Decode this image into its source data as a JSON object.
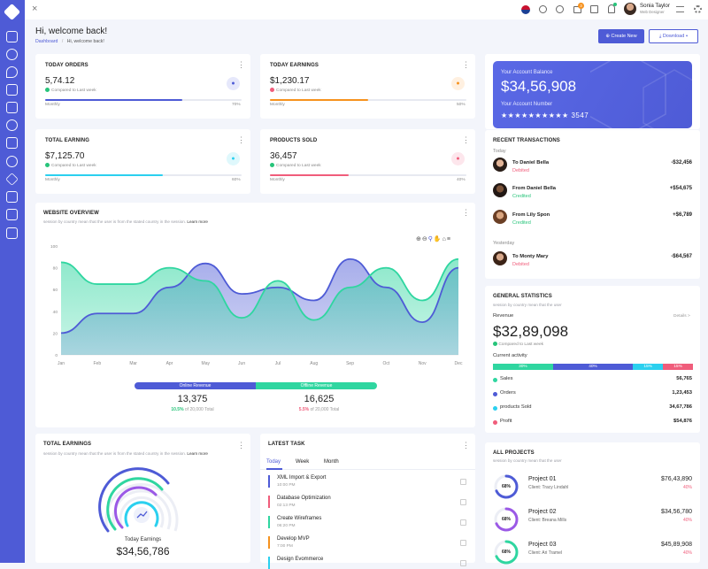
{
  "header": {
    "title": "Hi, welcome back!",
    "breadcrumb_root": "Dashboard",
    "breadcrumb_sep": "/",
    "breadcrumb_current": "Hi, welcome back!",
    "create_label": "Create New",
    "download_label": "Download",
    "user_name": "Sonia Taylor",
    "user_role": "Web Designer",
    "cart_badge": "3"
  },
  "stats": [
    {
      "title": "TODAY ORDERS",
      "value": "5,74.12",
      "compare": "Compared to Last week",
      "period": "Monthly",
      "percent": "70%",
      "progress": 0.7,
      "color": "#4e5bd6",
      "trend": "up"
    },
    {
      "title": "TODAY EARNINGS",
      "value": "$1,230.17",
      "compare": "Compared to Last week",
      "period": "Monthly",
      "percent": "50%",
      "progress": 0.5,
      "color": "#f6921e",
      "trend": "down"
    },
    {
      "title": "TOTAL EARNING",
      "value": "$7,125.70",
      "compare": "Compared to Last week",
      "period": "Monthly",
      "percent": "60%",
      "progress": 0.6,
      "color": "#2bd0ef",
      "trend": "up"
    },
    {
      "title": "PRODUCTS SOLD",
      "value": "36,457",
      "compare": "Compared to Last week",
      "period": "Monthly",
      "percent": "40%",
      "progress": 0.4,
      "color": "#f05d7b",
      "trend": "up"
    }
  ],
  "account": {
    "balance_label": "Your Account Balance",
    "balance": "$34,56,908",
    "number_label": "Your Account Number",
    "number_mask": "★★★★★★★★★★",
    "number_last": "3547"
  },
  "transactions": {
    "title": "RECENT TRANSACTIONS",
    "today": "Today",
    "yesterday": "Yesterday",
    "items": [
      {
        "name": "To Daniel Bella",
        "status": "Debited",
        "amount": "-$32,456",
        "color": "#f05d7b"
      },
      {
        "name": "From Daniel Bella",
        "status": "Credited",
        "amount": "+$54,675",
        "color": "#27c47a"
      },
      {
        "name": "From Lily Spon",
        "status": "Credited",
        "amount": "+$6,789",
        "color": "#27c47a"
      },
      {
        "name": "To Monty Mary",
        "status": "Debited",
        "amount": "-$64,567",
        "color": "#f05d7b"
      }
    ]
  },
  "overview": {
    "title": "WEBSITE OVERVIEW",
    "subtitle": "session by country mean that the user is from the stated country in the session.",
    "learn": "Learn more",
    "online_label": "Online Revenue",
    "offline_label": "Offline Revenue",
    "online_value": "13,375",
    "online_pct": "10.5%",
    "online_of": "of 20,000 Total",
    "offline_value": "16,625",
    "offline_pct": "5.5%",
    "offline_of": "of 20,000 Total"
  },
  "chart_data": {
    "type": "area",
    "categories": [
      "Jan",
      "Feb",
      "Mar",
      "Apr",
      "May",
      "Jun",
      "Jul",
      "Aug",
      "Sep",
      "Oct",
      "Nov",
      "Dec"
    ],
    "ylim": [
      0,
      100
    ],
    "yticks": [
      "0",
      "20",
      "40",
      "60",
      "80",
      "100"
    ],
    "series": [
      {
        "values": [
          20,
          38,
          38,
          62,
          84,
          56,
          62,
          50,
          88,
          62,
          30,
          80
        ],
        "color": "#4e5bd6"
      },
      {
        "values": [
          85,
          65,
          65,
          80,
          68,
          34,
          68,
          32,
          62,
          80,
          50,
          88
        ],
        "color": "#2fd6a0"
      }
    ]
  },
  "general": {
    "title": "GENERAL STATISTICS",
    "subtitle": "session by country mean that the user",
    "revenue_label": "Revenue",
    "details": "Details >",
    "revenue": "$32,89,098",
    "compare": "Compared to Last week",
    "activity": "Current activity",
    "segments": [
      {
        "label": "30%",
        "w": 0.3,
        "color": "#2fd6a0"
      },
      {
        "label": "40%",
        "w": 0.4,
        "color": "#4e5bd6"
      },
      {
        "label": "15%",
        "w": 0.15,
        "color": "#2bd0ef"
      },
      {
        "label": "15%",
        "w": 0.15,
        "color": "#f05d7b"
      }
    ],
    "rows": [
      {
        "label": "Sales",
        "value": "56,765",
        "color": "#2fd6a0"
      },
      {
        "label": "Orders",
        "value": "1,23,453",
        "color": "#4e5bd6"
      },
      {
        "label": "products Sold",
        "value": "34,67,786",
        "color": "#2bd0ef"
      },
      {
        "label": "Profit",
        "value": "$54,876",
        "color": "#f05d7b"
      }
    ]
  },
  "total_earnings": {
    "title": "TOTAL EARNINGS",
    "subtitle": "session by country mean that the user is from the stated country in the session.",
    "learn": "Learn more",
    "label": "Today Earnings",
    "value": "$34,56,786"
  },
  "tasks": {
    "title": "LATEST TASK",
    "tabs": [
      "Today",
      "Week",
      "Month"
    ],
    "items": [
      {
        "name": "XML Import & Export",
        "time": "10:00 PM",
        "color": "#4e5bd6"
      },
      {
        "name": "Database Optimization",
        "time": "02:13 PM",
        "color": "#f05d7b"
      },
      {
        "name": "Create Wireframes",
        "time": "06:20 PM",
        "color": "#2fd6a0"
      },
      {
        "name": "Develop MVP",
        "time": "7:00 PM",
        "color": "#f6921e"
      },
      {
        "name": "Design Evommerce",
        "time": "",
        "color": "#2bd0ef"
      }
    ]
  },
  "projects": {
    "title": "ALL PROJECTS",
    "subtitle": "session by country mean that the user",
    "items": [
      {
        "name": "Project 01",
        "client": "Client: Tracy Lindahl",
        "amount": "$76,43,890",
        "pct": "40%",
        "ring": "68%",
        "ring_value": 0.68,
        "color": "#4e5bd6"
      },
      {
        "name": "Project 02",
        "client": "Client: Breana Mills",
        "amount": "$34,56,780",
        "pct": "40%",
        "ring": "68%",
        "ring_value": 0.68,
        "color": "#9b59e6"
      },
      {
        "name": "Project 03",
        "client": "Client: Ari Tramel",
        "amount": "$45,89,908",
        "pct": "40%",
        "ring": "68%",
        "ring_value": 0.68,
        "color": "#2fd6a0"
      }
    ]
  }
}
